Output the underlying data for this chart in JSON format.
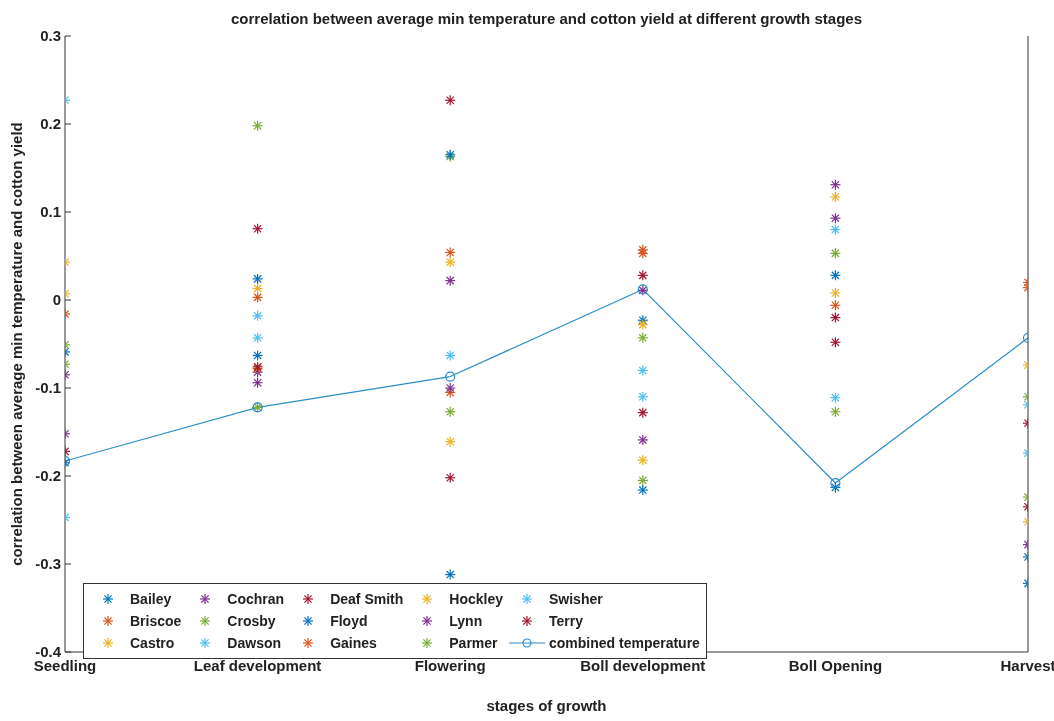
{
  "chart_data": {
    "type": "scatter",
    "title": "correlation between average min temperature  and cotton yield at different growth stages",
    "xlabel": "stages of growth",
    "ylabel": "correlation between average min temperature and cotton yield",
    "categories": [
      "Seedling",
      "Leaf development",
      "Flowering",
      "Boll development",
      "Boll Opening",
      "Harvest"
    ],
    "ylim": [
      -0.4,
      0.3
    ],
    "yticks": [
      -0.4,
      -0.3,
      -0.2,
      -0.1,
      0,
      0.1,
      0.2,
      0.3
    ],
    "legend": "bottom left",
    "series": [
      {
        "name": "Bailey",
        "color": "#0072bd",
        "marker": "cross",
        "values": [
          -0.059,
          0.024,
          -0.312,
          -0.023,
          0.028,
          -0.292
        ]
      },
      {
        "name": "Briscoe",
        "color": "#d95319",
        "marker": "cross",
        "values": [
          -0.016,
          0.003,
          0.054,
          0.053,
          -0.006,
          0.02
        ]
      },
      {
        "name": "Castro",
        "color": "#edb120",
        "marker": "cross",
        "values": [
          0.043,
          0.013,
          0.043,
          -0.028,
          0.117,
          -0.074
        ]
      },
      {
        "name": "Cochran",
        "color": "#7e2f8e",
        "marker": "cross",
        "values": [
          -0.085,
          -0.082,
          0.022,
          0.011,
          0.131,
          -0.278
        ]
      },
      {
        "name": "Crosby",
        "color": "#77ac30",
        "marker": "cross",
        "values": [
          -0.051,
          0.198,
          0.163,
          -0.043,
          0.053,
          -0.11
        ]
      },
      {
        "name": "Dawson",
        "color": "#4dbeee",
        "marker": "cross",
        "values": [
          0.227,
          -0.018,
          -0.063,
          -0.08,
          0.08,
          -0.119
        ]
      },
      {
        "name": "Deaf Smith",
        "color": "#a2142f",
        "marker": "cross",
        "values": [
          -0.172,
          0.081,
          0.227,
          0.028,
          -0.02,
          -0.14
        ]
      },
      {
        "name": "Floyd",
        "color": "#0072bd",
        "marker": "cross",
        "values": [
          -0.185,
          -0.063,
          0.165,
          -0.216,
          -0.213,
          -0.322
        ]
      },
      {
        "name": "Gaines",
        "color": "#d95319",
        "marker": "cross",
        "values": [
          null,
          -0.078,
          -0.105,
          0.057,
          null,
          0.014
        ]
      },
      {
        "name": "Hockley",
        "color": "#edb120",
        "marker": "cross",
        "values": [
          0.007,
          null,
          -0.161,
          -0.182,
          0.008,
          -0.252
        ]
      },
      {
        "name": "Lynn",
        "color": "#7e2f8e",
        "marker": "cross",
        "values": [
          -0.152,
          -0.094,
          -0.1,
          -0.159,
          0.093,
          null
        ]
      },
      {
        "name": "Parmer",
        "color": "#77ac30",
        "marker": "cross",
        "values": [
          -0.073,
          -0.122,
          -0.127,
          -0.205,
          -0.127,
          -0.224
        ]
      },
      {
        "name": "Swisher",
        "color": "#4dbeee",
        "marker": "cross",
        "values": [
          -0.247,
          -0.043,
          null,
          -0.11,
          -0.111,
          -0.174
        ]
      },
      {
        "name": "Terry",
        "color": "#a2142f",
        "marker": "cross",
        "values": [
          null,
          -0.076,
          -0.202,
          -0.128,
          -0.048,
          -0.235
        ]
      },
      {
        "name": "combined temperature",
        "type": "line",
        "color": "#2a8cc8",
        "marker": "circle",
        "values": [
          -0.183,
          -0.122,
          -0.087,
          0.012,
          -0.208,
          -0.043
        ]
      }
    ]
  }
}
